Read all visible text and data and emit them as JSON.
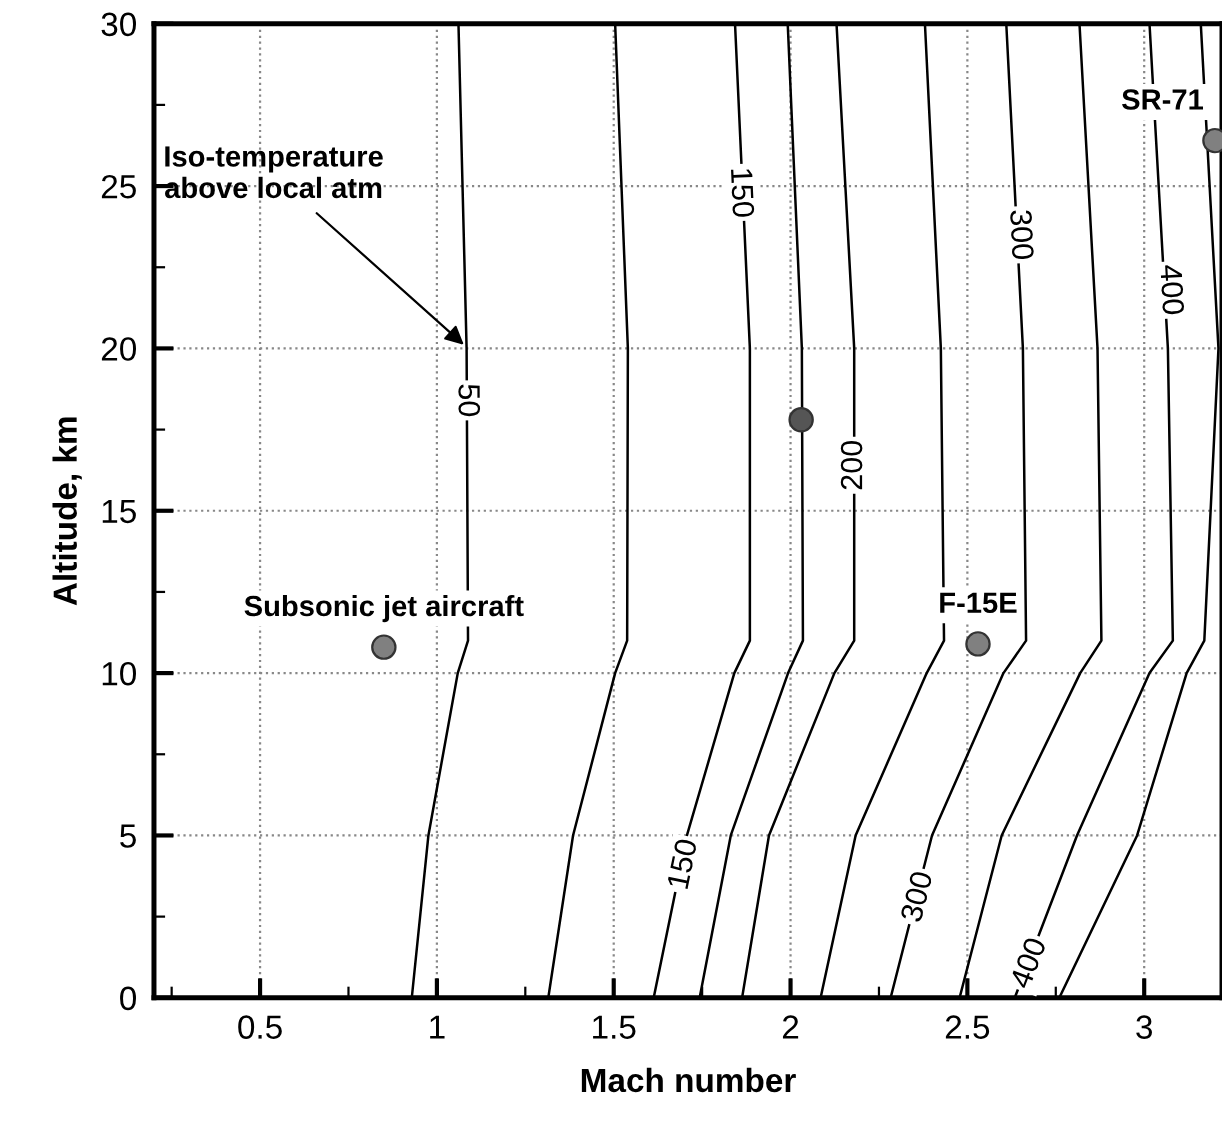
{
  "chart_data": {
    "type": "line",
    "xlabel": "Mach number",
    "ylabel": "Altitude, km",
    "xlim": [
      0.2,
      3.22
    ],
    "ylim": [
      0,
      30
    ],
    "xticks": [
      0.5,
      1,
      1.5,
      2,
      2.5,
      3
    ],
    "yticks": [
      0,
      5,
      10,
      15,
      20,
      25,
      30
    ],
    "grid": true,
    "series": [
      {
        "color": "#000000",
        "x": [
          0.929,
          0.976,
          1.059,
          1.088,
          1.084,
          1.061
        ],
        "values": [
          0,
          5,
          10,
          11,
          20,
          30
        ]
      },
      {
        "color": "#000000",
        "x": [
          1.315,
          1.385,
          1.504,
          1.538,
          1.54,
          1.504
        ],
        "values": [
          0,
          5,
          10,
          11,
          20,
          30
        ]
      },
      {
        "color": "#000000",
        "x": [
          1.613,
          1.707,
          1.841,
          1.885,
          1.885,
          1.843
        ],
        "values": [
          0,
          5,
          10,
          11,
          20,
          30
        ]
      },
      {
        "color": "#000000",
        "x": [
          1.743,
          1.831,
          1.993,
          2.035,
          2.032,
          1.992
        ],
        "values": [
          0,
          5,
          10,
          11,
          20,
          30
        ]
      },
      {
        "color": "#000000",
        "x": [
          1.863,
          1.939,
          2.124,
          2.18,
          2.18,
          2.13
        ],
        "values": [
          0,
          5,
          10,
          11,
          20,
          30
        ]
      },
      {
        "color": "#000000",
        "x": [
          2.085,
          2.184,
          2.385,
          2.434,
          2.425,
          2.38
        ],
        "values": [
          0,
          5,
          10,
          11,
          20,
          30
        ]
      },
      {
        "color": "#000000",
        "x": [
          2.283,
          2.4,
          2.602,
          2.666,
          2.657,
          2.61
        ],
        "values": [
          0,
          5,
          10,
          11,
          20,
          30
        ]
      },
      {
        "color": "#000000",
        "x": [
          2.478,
          2.597,
          2.819,
          2.879,
          2.868,
          2.817
        ],
        "values": [
          0,
          5,
          10,
          11,
          20,
          30
        ]
      },
      {
        "color": "#000000",
        "x": [
          2.634,
          2.81,
          3.015,
          3.081,
          3.067,
          3.015
        ],
        "values": [
          0,
          5,
          10,
          11,
          20,
          30
        ]
      },
      {
        "color": "#000000",
        "x": [
          2.76,
          2.98,
          3.12,
          3.17,
          3.21,
          3.16
        ],
        "values": [
          0,
          5,
          10,
          11,
          20,
          30
        ]
      },
      {
        "type": "scatter",
        "marker": "circle",
        "x": [
          0.85,
          2.03,
          2.53,
          3.2
        ],
        "values": [
          10.8,
          17.8,
          10.9,
          26.4
        ],
        "colors": [
          "#808080",
          "#555555",
          "#808080",
          "#808080"
        ]
      }
    ],
    "annotations": [
      {
        "text": "Iso-temperature\nabove local atm",
        "x": 1.088,
        "y": 20
      },
      {
        "text": "Subsonic jet aircraft",
        "x": 0.85,
        "y": 10.8
      },
      {
        "text": "F-15E",
        "x": 2.53,
        "y": 10.9
      },
      {
        "text": "SR-71",
        "x": 3.2,
        "y": 26.4
      },
      {
        "text": "50",
        "x": 1.084,
        "y": 18.4
      },
      {
        "text": "150",
        "x": 1.857,
        "y": 24.8
      },
      {
        "text": "200",
        "x": 2.18,
        "y": 16.4
      },
      {
        "text": "300",
        "x": 2.647,
        "y": 23.5
      },
      {
        "text": "400",
        "x": 3.072,
        "y": 21.8
      },
      {
        "text": "150",
        "x": 1.7,
        "y": 4.1
      },
      {
        "text": "300",
        "x": 2.363,
        "y": 3.1
      },
      {
        "text": "400",
        "x": 2.678,
        "y": 1.05
      }
    ]
  }
}
